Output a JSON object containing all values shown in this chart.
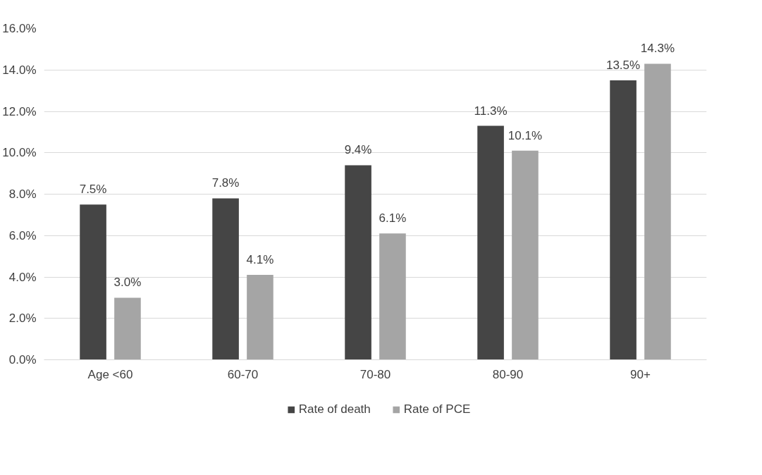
{
  "chart_data": {
    "type": "bar",
    "categories": [
      "Age <60",
      "60-70",
      "70-80",
      "80-90",
      "90+"
    ],
    "series": [
      {
        "name": "Rate of death",
        "color": "#454545",
        "values": [
          7.5,
          7.8,
          9.4,
          11.3,
          13.5
        ],
        "value_labels": [
          "7.5%",
          "7.8%",
          "9.4%",
          "11.3%",
          "13.5%"
        ]
      },
      {
        "name": "Rate of PCE",
        "color": "#a5a5a5",
        "values": [
          3.0,
          4.1,
          6.1,
          10.1,
          14.3
        ],
        "value_labels": [
          "3.0%",
          "4.1%",
          "6.1%",
          "10.1%",
          "14.3%"
        ]
      }
    ],
    "ylim": [
      0,
      16
    ],
    "yticks": [
      {
        "value": 0,
        "label": "0.0%"
      },
      {
        "value": 2,
        "label": "2.0%"
      },
      {
        "value": 4,
        "label": "4.0%"
      },
      {
        "value": 6,
        "label": "6.0%"
      },
      {
        "value": 8,
        "label": "8.0%"
      },
      {
        "value": 10,
        "label": "10.0%"
      },
      {
        "value": 12,
        "label": "12.0%"
      },
      {
        "value": 14,
        "label": "14.0%"
      },
      {
        "value": 16,
        "label": "16.0%"
      }
    ],
    "grid": "y",
    "legend": "bottom"
  }
}
